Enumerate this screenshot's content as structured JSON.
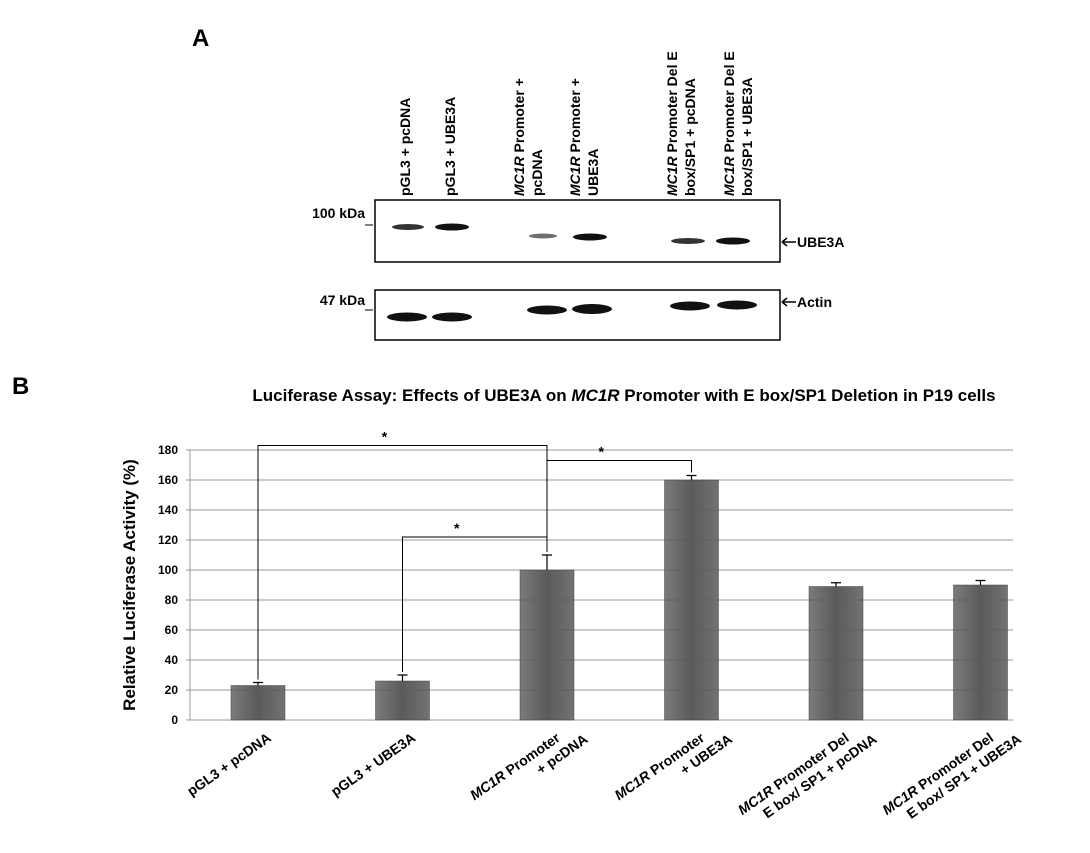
{
  "panel_a": {
    "label": "A",
    "lanes": [
      [
        [
          {
            "text": "pGL3 + pcDNA"
          }
        ]
      ],
      [
        [
          {
            "text": "pGL3 + UBE3A"
          }
        ]
      ],
      [
        [
          {
            "text": "MC1R",
            "italic": true
          },
          {
            "text": " Promoter +"
          }
        ],
        [
          {
            "text": "pcDNA"
          }
        ]
      ],
      [
        [
          {
            "text": "MC1R",
            "italic": true
          },
          {
            "text": " Promoter +"
          }
        ],
        [
          {
            "text": "UBE3A"
          }
        ]
      ],
      [
        [
          {
            "text": "MC1R",
            "italic": true
          },
          {
            "text": " Promoter Del E"
          }
        ],
        [
          {
            "text": "box/SP1 + pcDNA"
          }
        ]
      ],
      [
        [
          {
            "text": "MC1R",
            "italic": true
          },
          {
            "text": " Promoter Del E"
          }
        ],
        [
          {
            "text": "box/SP1 + UBE3A"
          }
        ]
      ]
    ],
    "markers": [
      "100 kDa",
      "47 kDa"
    ],
    "bands": [
      "UBE3A",
      "Actin"
    ]
  },
  "chart_data": {
    "type": "bar",
    "panel_label": "B",
    "title": [
      {
        "text": "Luciferase Assay: Effects of UBE3A on "
      },
      {
        "text": "MC1R",
        "italic": true
      },
      {
        "text": " Promoter with E box/SP1 Deletion in P19 cells"
      }
    ],
    "y_label": "Relative Luciferase Activity (%)",
    "categories": [
      [
        [
          {
            "text": "pGL3 + pcDNA"
          }
        ]
      ],
      [
        [
          {
            "text": "pGL3 + UBE3A"
          }
        ]
      ],
      [
        [
          {
            "text": "MC1R",
            "italic": true
          },
          {
            "text": " Promoter"
          }
        ],
        [
          {
            "text": "+ pcDNA"
          }
        ]
      ],
      [
        [
          {
            "text": "MC1R",
            "italic": true
          },
          {
            "text": " Promoter"
          }
        ],
        [
          {
            "text": "+ UBE3A"
          }
        ]
      ],
      [
        [
          {
            "text": "MC1R",
            "italic": true
          },
          {
            "text": " Promoter Del"
          }
        ],
        [
          {
            "text": "E box/ SP1 + pcDNA"
          }
        ]
      ],
      [
        [
          {
            "text": "MC1R",
            "italic": true
          },
          {
            "text": " Promoter Del"
          }
        ],
        [
          {
            "text": "E box/ SP1 + UBE3A"
          }
        ]
      ]
    ],
    "values": [
      23,
      26,
      100,
      160,
      89,
      90
    ],
    "errors": [
      2,
      4,
      10,
      3,
      2.5,
      3
    ],
    "color": "#5a5a5a",
    "ylim": [
      0,
      180
    ],
    "yticks": [
      0,
      20,
      40,
      60,
      80,
      100,
      120,
      140,
      160,
      180
    ],
    "grid": true,
    "annotations": [
      {
        "text": "*",
        "from": 0,
        "to": 2,
        "y": 183
      },
      {
        "text": "*",
        "from": 2,
        "to": 3,
        "y": 173
      },
      {
        "text": "*",
        "from": 1,
        "to": 2,
        "y": 122
      }
    ]
  }
}
